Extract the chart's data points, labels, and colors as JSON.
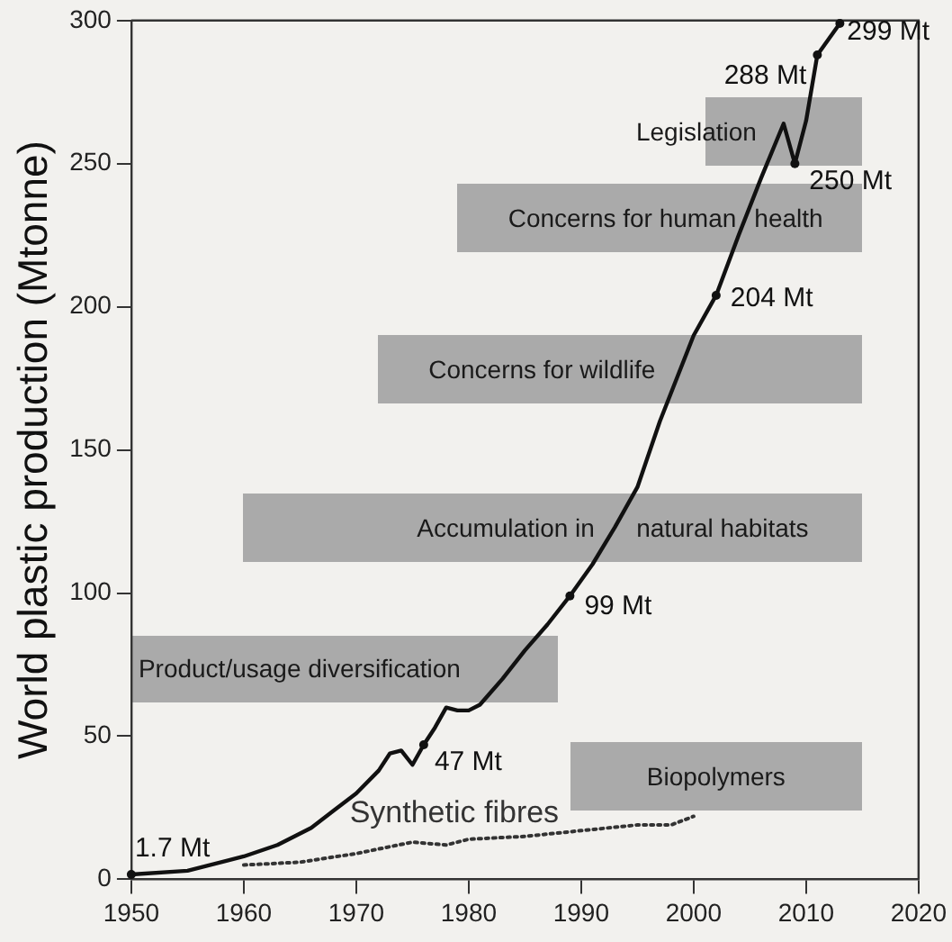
{
  "chart_data": {
    "type": "line",
    "ylabel": "World plastic production (Mtonne)",
    "xlim": [
      1950,
      2020
    ],
    "xticks": [
      1950,
      1960,
      1970,
      1980,
      1990,
      2000,
      2010,
      2020
    ],
    "ylim": [
      0,
      300
    ],
    "yticks": [
      0,
      50,
      100,
      150,
      200,
      250,
      300
    ],
    "grid": false,
    "legend": false,
    "marker": "none",
    "series": [
      {
        "color": "#111111",
        "line_style": "solid",
        "x": [
          1950,
          1955,
          1960,
          1963,
          1966,
          1968,
          1970,
          1972,
          1973,
          1974,
          1975,
          1976,
          1977,
          1978,
          1979,
          1980,
          1981,
          1983,
          1985,
          1987,
          1989,
          1991,
          1993,
          1995,
          1997,
          1999,
          2000,
          2002,
          2004,
          2006,
          2008,
          2009,
          2010,
          2011,
          2013
        ],
        "values": [
          1.7,
          3,
          8,
          12,
          18,
          24,
          30,
          38,
          44,
          45,
          40,
          47,
          53,
          60,
          59,
          59,
          61,
          70,
          80,
          89,
          99,
          110,
          123,
          137,
          160,
          180,
          190,
          204,
          225,
          245,
          264,
          250,
          265,
          288,
          299
        ]
      },
      {
        "name": "Synthetic fibres",
        "color": "#333333",
        "line_style": "dotted",
        "x": [
          1960,
          1965,
          1970,
          1975,
          1978,
          1980,
          1985,
          1990,
          1995,
          1998,
          2000
        ],
        "values": [
          5,
          6,
          9,
          13,
          12,
          14,
          15,
          17,
          19,
          19,
          22
        ]
      }
    ],
    "annotations": [
      "Legislation",
      "Concerns for human health",
      "Concerns for wildlife",
      "Accumulation in natural habitats",
      "Product/usage diversification",
      "Biopolymers",
      {
        "text": "1.7 Mt",
        "x": 1950,
        "y": 1.7
      },
      {
        "text": "47 Mt",
        "x": 1976,
        "y": 47
      },
      {
        "text": "99 Mt",
        "x": 1989,
        "y": 99
      },
      {
        "text": "204 Mt",
        "x": 2002,
        "y": 204
      },
      {
        "text": "250 Mt",
        "x": 2009,
        "y": 250
      },
      {
        "text": "288 Mt",
        "x": 2011,
        "y": 288
      },
      {
        "text": "299 Mt",
        "x": 2013,
        "y": 299
      }
    ]
  }
}
